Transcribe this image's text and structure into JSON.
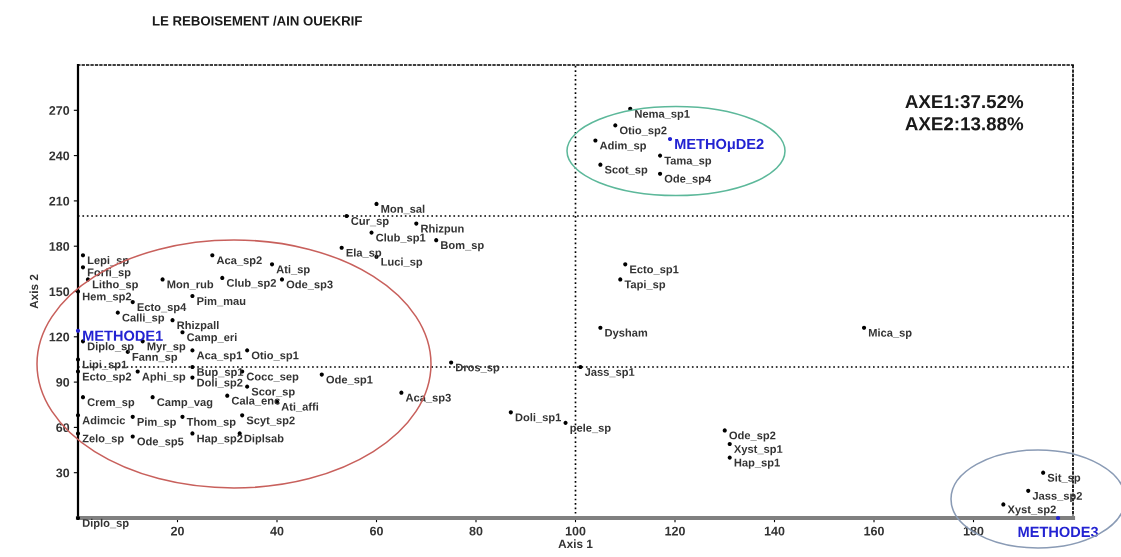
{
  "chart_data": {
    "type": "scatter",
    "title": "LE REBOISEMENT /AIN OUEKRIF",
    "xlabel": "Axis 1",
    "ylabel": "Axis 2",
    "xlim": [
      0,
      200
    ],
    "ylim": [
      0,
      300
    ],
    "xticks": [
      20,
      40,
      60,
      80,
      100,
      120,
      140,
      160,
      180
    ],
    "yticks": [
      30,
      60,
      90,
      120,
      150,
      180,
      210,
      240,
      270
    ],
    "marker": "circle",
    "ref_lines": [
      {
        "axis": "x",
        "value": 100,
        "color": "#000000",
        "line_style": "dotted"
      },
      {
        "axis": "y",
        "value": 100,
        "color": "#000000",
        "line_style": "dotted"
      },
      {
        "axis": "y",
        "value": 200,
        "color": "#000000",
        "line_style": "dotted"
      }
    ],
    "series": [
      {
        "color": "#000000",
        "x": [
          1,
          1,
          2,
          0,
          11,
          8,
          19,
          17,
          23,
          27,
          39,
          29,
          41,
          21,
          1,
          13,
          10,
          23,
          34,
          0,
          23,
          33,
          0,
          12,
          23,
          34,
          1,
          15,
          30,
          40,
          0,
          11,
          21,
          33,
          0,
          11,
          23,
          32.5,
          0,
          60,
          54,
          59,
          68,
          72,
          53,
          60,
          49,
          75,
          65,
          87,
          111,
          108,
          104,
          117,
          105,
          117,
          110,
          109,
          105,
          158,
          101,
          98,
          130,
          131,
          131,
          194,
          191,
          186
        ],
        "values": [
          174,
          166,
          158,
          150,
          143,
          136,
          131,
          158,
          147,
          174,
          168,
          159,
          158,
          123,
          117,
          117,
          110,
          111,
          111,
          105,
          100,
          97,
          97,
          97,
          93,
          87,
          80,
          80,
          81,
          77,
          68,
          67,
          67,
          68,
          56,
          54,
          56,
          56,
          0,
          208,
          200,
          189,
          195,
          184,
          179,
          173,
          95,
          103,
          83,
          70,
          271,
          260,
          250,
          240,
          234,
          228,
          168,
          158,
          126,
          126,
          100,
          63,
          58,
          49,
          40,
          30,
          18,
          9
        ]
      },
      {
        "name": "METHODE1",
        "color": "#2323d2",
        "x": [
          0
        ],
        "values": [
          124
        ]
      },
      {
        "name": "METHOμDE2",
        "color": "#2323d2",
        "x": [
          119
        ],
        "values": [
          251
        ]
      },
      {
        "name": "METHODE3",
        "color": "#2323d2",
        "x": [
          197
        ],
        "values": [
          0
        ]
      }
    ],
    "annotations": [
      {
        "text": "Lepi_sp",
        "x": 1,
        "y": 174
      },
      {
        "text": "Forfi_sp",
        "x": 1,
        "y": 166
      },
      {
        "text": "Litho_sp",
        "x": 2,
        "y": 158
      },
      {
        "text": "Hem_sp2",
        "x": 0,
        "y": 150
      },
      {
        "text": "Ecto_sp4",
        "x": 11,
        "y": 143
      },
      {
        "text": "Calli_sp",
        "x": 8,
        "y": 136
      },
      {
        "text": "Rhizpall",
        "x": 19,
        "y": 131
      },
      {
        "text": "Mon_rub",
        "x": 17,
        "y": 158
      },
      {
        "text": "Pim_mau",
        "x": 23,
        "y": 147
      },
      {
        "text": "Aca_sp2",
        "x": 27,
        "y": 174
      },
      {
        "text": "Ati_sp",
        "x": 39,
        "y": 168
      },
      {
        "text": "Club_sp2",
        "x": 29,
        "y": 159
      },
      {
        "text": "Ode_sp3",
        "x": 41,
        "y": 158
      },
      {
        "text": "Camp_eri",
        "x": 21,
        "y": 123
      },
      {
        "text": "Diplo_sp",
        "x": 1,
        "y": 117
      },
      {
        "text": "Myr_sp",
        "x": 13,
        "y": 117
      },
      {
        "text": "Fann_sp",
        "x": 10,
        "y": 110
      },
      {
        "text": "Aca_sp1",
        "x": 23,
        "y": 111
      },
      {
        "text": "Otio_sp1",
        "x": 34,
        "y": 111
      },
      {
        "text": "Lipi_sp1",
        "x": 0,
        "y": 105
      },
      {
        "text": "Bup_sp1",
        "x": 23,
        "y": 100
      },
      {
        "text": "Cocc_sep",
        "x": 33,
        "y": 97
      },
      {
        "text": "Ecto_sp2",
        "x": 0,
        "y": 97
      },
      {
        "text": "Aphi_sp",
        "x": 12,
        "y": 97
      },
      {
        "text": "Doli_sp2",
        "x": 23,
        "y": 93
      },
      {
        "text": "Scor_sp",
        "x": 34,
        "y": 87
      },
      {
        "text": "Crem_sp",
        "x": 1,
        "y": 80
      },
      {
        "text": "Camp_vag",
        "x": 15,
        "y": 80
      },
      {
        "text": "Cala_enc",
        "x": 30,
        "y": 81
      },
      {
        "text": "Ati_affi",
        "x": 40,
        "y": 77
      },
      {
        "text": "Adimcic",
        "x": 0,
        "y": 68
      },
      {
        "text": "Pim_sp",
        "x": 11,
        "y": 67
      },
      {
        "text": "Thom_sp",
        "x": 21,
        "y": 67
      },
      {
        "text": "Scyt_sp2",
        "x": 33,
        "y": 68
      },
      {
        "text": "Zelo_sp",
        "x": 0,
        "y": 56
      },
      {
        "text": "Ode_sp5",
        "x": 11,
        "y": 54
      },
      {
        "text": "Hap_sp2",
        "x": 23,
        "y": 56
      },
      {
        "text": "Diplsab",
        "x": 32.5,
        "y": 56
      },
      {
        "text": "Diplo_sp",
        "x": 0,
        "y": 0
      },
      {
        "text": "Mon_sal",
        "x": 60,
        "y": 208
      },
      {
        "text": "Cur_sp",
        "x": 54,
        "y": 200
      },
      {
        "text": "Club_sp1",
        "x": 59,
        "y": 189
      },
      {
        "text": "Rhizpun",
        "x": 68,
        "y": 195
      },
      {
        "text": "Bom_sp",
        "x": 72,
        "y": 184
      },
      {
        "text": "Ela_sp",
        "x": 53,
        "y": 179
      },
      {
        "text": "Luci_sp",
        "x": 60,
        "y": 173
      },
      {
        "text": "Ode_sp1",
        "x": 49,
        "y": 95
      },
      {
        "text": "Dros_sp",
        "x": 75,
        "y": 103
      },
      {
        "text": "Aca_sp3",
        "x": 65,
        "y": 83
      },
      {
        "text": "Doli_sp1",
        "x": 87,
        "y": 70
      },
      {
        "text": "Nema_sp1",
        "x": 111,
        "y": 271
      },
      {
        "text": "Otio_sp2",
        "x": 108,
        "y": 260
      },
      {
        "text": "Adim_sp",
        "x": 104,
        "y": 250
      },
      {
        "text": "Tama_sp",
        "x": 117,
        "y": 240
      },
      {
        "text": "Scot_sp",
        "x": 105,
        "y": 234
      },
      {
        "text": "Ode_sp4",
        "x": 117,
        "y": 228
      },
      {
        "text": "Ecto_sp1",
        "x": 110,
        "y": 168
      },
      {
        "text": "Tapi_sp",
        "x": 109,
        "y": 158
      },
      {
        "text": "Dysham",
        "x": 105,
        "y": 126
      },
      {
        "text": "Mica_sp",
        "x": 158,
        "y": 126
      },
      {
        "text": "Jass_sp1",
        "x": 101,
        "y": 100
      },
      {
        "text": "pele_sp",
        "x": 98,
        "y": 63
      },
      {
        "text": "Ode_sp2",
        "x": 130,
        "y": 58
      },
      {
        "text": "Xyst_sp1",
        "x": 131,
        "y": 49
      },
      {
        "text": "Hap_sp1",
        "x": 131,
        "y": 40
      },
      {
        "text": "Sit_sp",
        "x": 194,
        "y": 30
      },
      {
        "text": "Jass_sp2",
        "x": 191,
        "y": 18
      },
      {
        "text": "Xyst_sp2",
        "x": 186,
        "y": 9
      },
      "AXE1:37.52%",
      "AXE2:13.88%"
    ]
  }
}
